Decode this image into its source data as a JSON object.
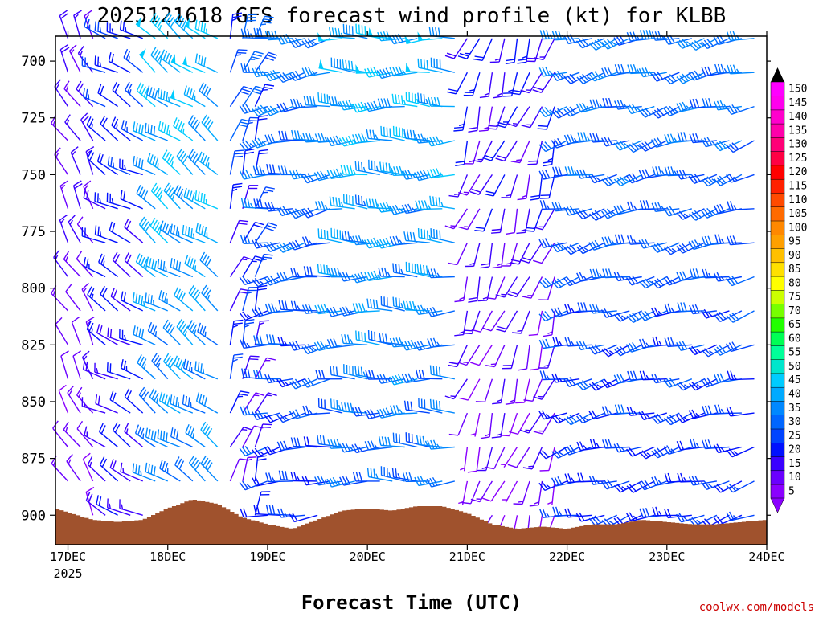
{
  "chart_data": {
    "type": "wind_barb_timeheight",
    "title": "2025121618 GFS forecast wind profile (kt) for KLBB",
    "xlabel": "Forecast Time (UTC)",
    "credit": "coolwx.com/models",
    "y_axis": {
      "quantity": "pressure (hPa)",
      "range": [
        689,
        913
      ],
      "inverted": true,
      "tick_values": [
        700,
        725,
        750,
        775,
        800,
        825,
        850,
        875,
        900
      ],
      "tick_labels": [
        "700",
        "725",
        "750",
        "775",
        "800",
        "825",
        "850",
        "875",
        "900"
      ]
    },
    "x_axis": {
      "quantity": "hours since 2025-12-17 00 UTC",
      "range": [
        -3,
        168
      ],
      "tick_values": [
        0,
        24,
        48,
        72,
        96,
        120,
        144,
        168
      ],
      "tick_labels": [
        "17DEC",
        "18DEC",
        "19DEC",
        "20DEC",
        "21DEC",
        "22DEC",
        "23DEC",
        "24DEC"
      ],
      "year_label": "2025"
    },
    "levels_hpa": [
      690,
      705,
      720,
      735,
      750,
      765,
      780,
      795,
      810,
      825,
      840,
      855,
      870,
      885,
      900
    ],
    "time_step_hours": 6,
    "time_start_hour": -6,
    "time_end_hour": 168,
    "surface_pressure_hpa": [
      {
        "t": -3,
        "p": 897
      },
      {
        "t": 6,
        "p": 902
      },
      {
        "t": 12,
        "p": 903
      },
      {
        "t": 18,
        "p": 902
      },
      {
        "t": 24,
        "p": 897
      },
      {
        "t": 30,
        "p": 893
      },
      {
        "t": 36,
        "p": 895
      },
      {
        "t": 42,
        "p": 901
      },
      {
        "t": 48,
        "p": 904
      },
      {
        "t": 54,
        "p": 906
      },
      {
        "t": 60,
        "p": 902
      },
      {
        "t": 66,
        "p": 898
      },
      {
        "t": 72,
        "p": 897
      },
      {
        "t": 78,
        "p": 898
      },
      {
        "t": 84,
        "p": 896
      },
      {
        "t": 90,
        "p": 896
      },
      {
        "t": 96,
        "p": 899
      },
      {
        "t": 102,
        "p": 904
      },
      {
        "t": 108,
        "p": 906
      },
      {
        "t": 114,
        "p": 905
      },
      {
        "t": 120,
        "p": 906
      },
      {
        "t": 126,
        "p": 904
      },
      {
        "t": 132,
        "p": 904
      },
      {
        "t": 138,
        "p": 902
      },
      {
        "t": 144,
        "p": 903
      },
      {
        "t": 150,
        "p": 904
      },
      {
        "t": 156,
        "p": 904
      },
      {
        "t": 162,
        "p": 903
      },
      {
        "t": 168,
        "p": 902
      }
    ],
    "wind_regimes": [
      {
        "t_start": -6,
        "t_end": 9,
        "speed_kt_range": [
          8,
          20
        ],
        "direction_from_deg": 330
      },
      {
        "t_start": 9,
        "t_end": 19,
        "speed_kt_range": [
          15,
          28
        ],
        "direction_from_deg": 300
      },
      {
        "t_start": 19,
        "t_end": 39,
        "speed_kt_range": [
          30,
          50
        ],
        "direction_from_deg": 305
      },
      {
        "t_start": 39,
        "t_end": 48,
        "speed_kt_range": [
          10,
          35
        ],
        "direction_from_deg": 20
      },
      {
        "t_start": 48,
        "t_end": 66,
        "speed_kt_range": [
          20,
          40
        ],
        "direction_from_deg": 260
      },
      {
        "t_start": 66,
        "t_end": 96,
        "speed_kt_range": [
          25,
          50
        ],
        "direction_from_deg": 270
      },
      {
        "t_start": 96,
        "t_end": 120,
        "speed_kt_range": [
          5,
          25
        ],
        "direction_from_deg": 200
      },
      {
        "t_start": 120,
        "t_end": 168,
        "speed_kt_range": [
          20,
          38
        ],
        "direction_from_deg": 255
      }
    ],
    "colorbar": {
      "units": "kt",
      "values": [
        5,
        10,
        15,
        20,
        25,
        30,
        35,
        40,
        45,
        50,
        55,
        60,
        65,
        70,
        75,
        80,
        85,
        90,
        95,
        100,
        105,
        110,
        115,
        120,
        125,
        130,
        135,
        140,
        145,
        150
      ],
      "colors": [
        "#8a00ff",
        "#6a00ff",
        "#3a00ff",
        "#0010ff",
        "#0044ff",
        "#0066ff",
        "#0088ff",
        "#00aaff",
        "#00ccff",
        "#00e6cc",
        "#00ff99",
        "#00ff55",
        "#22ff00",
        "#77ff00",
        "#ccff00",
        "#ffff00",
        "#ffe000",
        "#ffc000",
        "#ffa000",
        "#ff8800",
        "#ff6a00",
        "#ff4a00",
        "#ff2000",
        "#ff0000",
        "#ff0044",
        "#ff0077",
        "#ff00aa",
        "#ff00cc",
        "#ff00ee",
        "#ff00ff"
      ],
      "extend_both": true
    },
    "terrain_color": "#a0522d",
    "plot_border": "#000000"
  }
}
